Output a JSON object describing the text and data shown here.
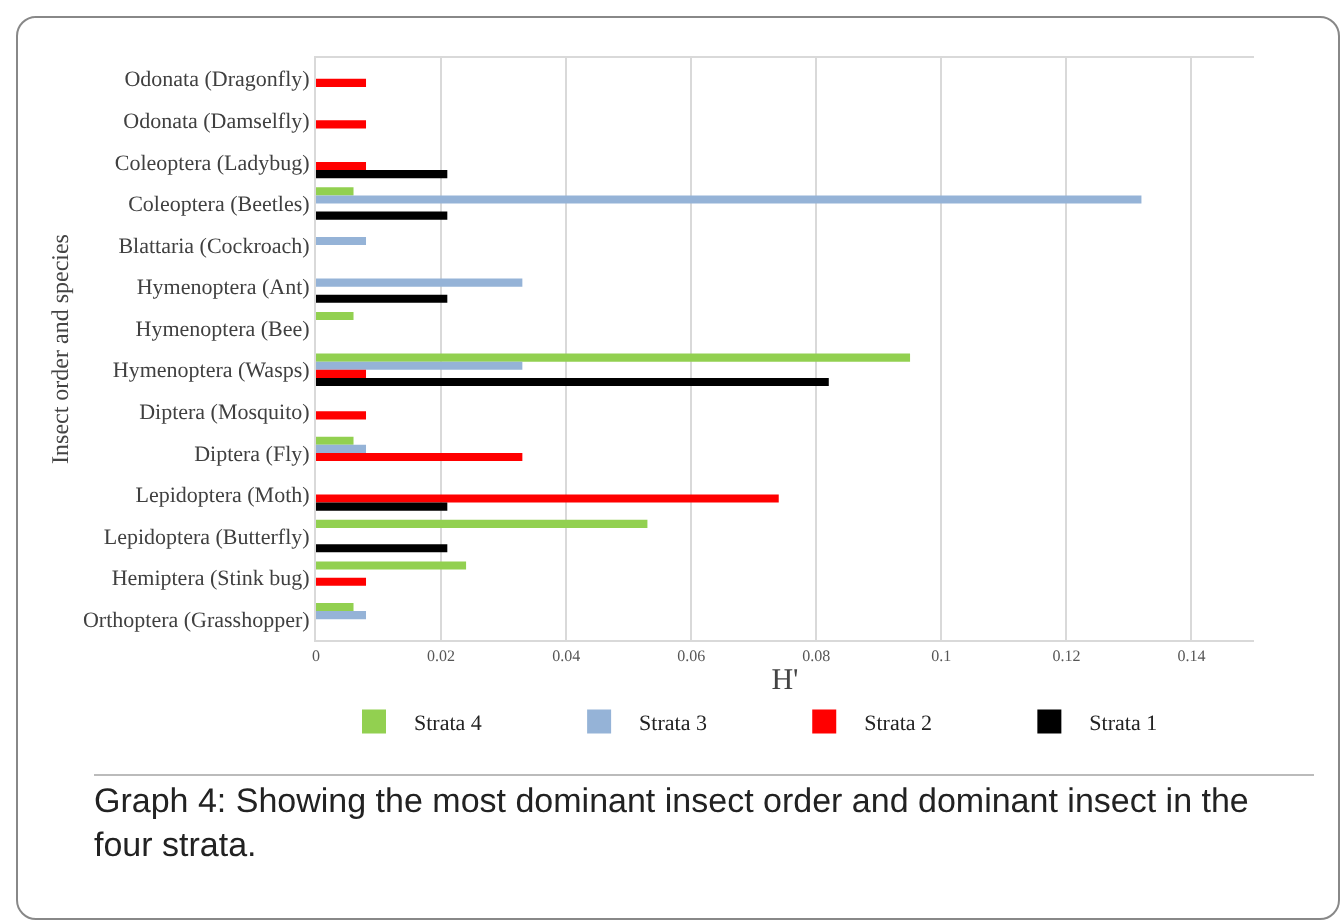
{
  "chart_data": {
    "type": "bar",
    "orientation": "horizontal",
    "xlabel": "H'",
    "ylabel": "Insect order and species",
    "categories": [
      "Odonata (Dragonfly)",
      "Odonata (Damselfly)",
      "Coleoptera (Ladybug)",
      "Coleoptera (Beetles)",
      "Blattaria (Cockroach)",
      "Hymenoptera (Ant)",
      "Hymenoptera (Bee)",
      "Hymenoptera (Wasps)",
      "Diptera (Mosquito)",
      "Diptera (Fly)",
      "Lepidoptera (Moth)",
      "Lepidoptera (Butterfly)",
      "Hemiptera (Stink bug)",
      "Orthoptera (Grasshopper)"
    ],
    "series": [
      {
        "name": "Strata 4",
        "color": "#92d050",
        "values": [
          null,
          null,
          null,
          0.006,
          null,
          null,
          0.006,
          0.095,
          null,
          0.006,
          null,
          0.053,
          0.024,
          0.006
        ]
      },
      {
        "name": "Strata 3",
        "color": "#95b3d7",
        "values": [
          null,
          null,
          null,
          0.132,
          0.008,
          0.033,
          null,
          0.033,
          null,
          0.008,
          null,
          null,
          null,
          0.008
        ]
      },
      {
        "name": "Strata 2",
        "color": "#ff0000",
        "values": [
          0.008,
          0.008,
          0.008,
          null,
          null,
          null,
          null,
          0.008,
          0.008,
          0.033,
          0.074,
          null,
          0.008,
          null
        ]
      },
      {
        "name": "Strata 1",
        "color": "#000000",
        "values": [
          null,
          null,
          0.021,
          0.021,
          null,
          0.021,
          null,
          0.082,
          null,
          null,
          0.021,
          0.021,
          null,
          null
        ]
      }
    ],
    "xlim": [
      0,
      0.15
    ],
    "xticks": [
      0,
      0.02,
      0.04,
      0.06,
      0.08,
      0.1,
      0.12,
      0.14
    ],
    "grid": "x",
    "legend": "bottom",
    "annotations": [
      "Graph 4: Showing the most dominant insect order and dominant insect in the four strata."
    ]
  }
}
